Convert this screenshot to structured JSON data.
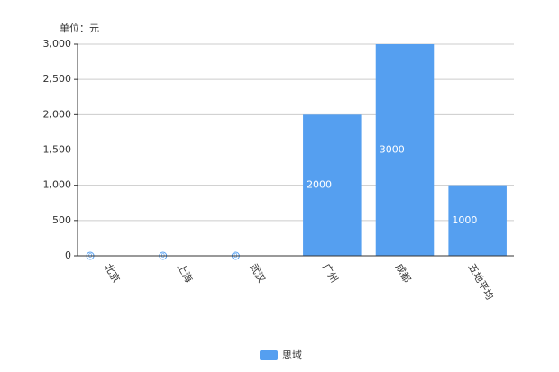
{
  "chart_data": {
    "type": "bar",
    "unit_label": "单位：元",
    "categories": [
      "北京",
      "上海",
      "武汉",
      "广州",
      "成都",
      "五地平均"
    ],
    "series": [
      {
        "name": "思域",
        "color": "#559ff0",
        "values": [
          0,
          0,
          0,
          2000,
          3000,
          1000
        ]
      }
    ],
    "ylim": [
      0,
      3000
    ],
    "yticks": [
      0,
      500,
      {
        "value": 1000,
        "label": "1,000"
      },
      {
        "value": 1500,
        "label": "1,500"
      },
      {
        "value": 2000,
        "label": "2,000"
      },
      {
        "value": 2500,
        "label": "2,500"
      },
      {
        "value": 3000,
        "label": "3,000"
      }
    ],
    "grid": true,
    "legend": "bottom"
  }
}
